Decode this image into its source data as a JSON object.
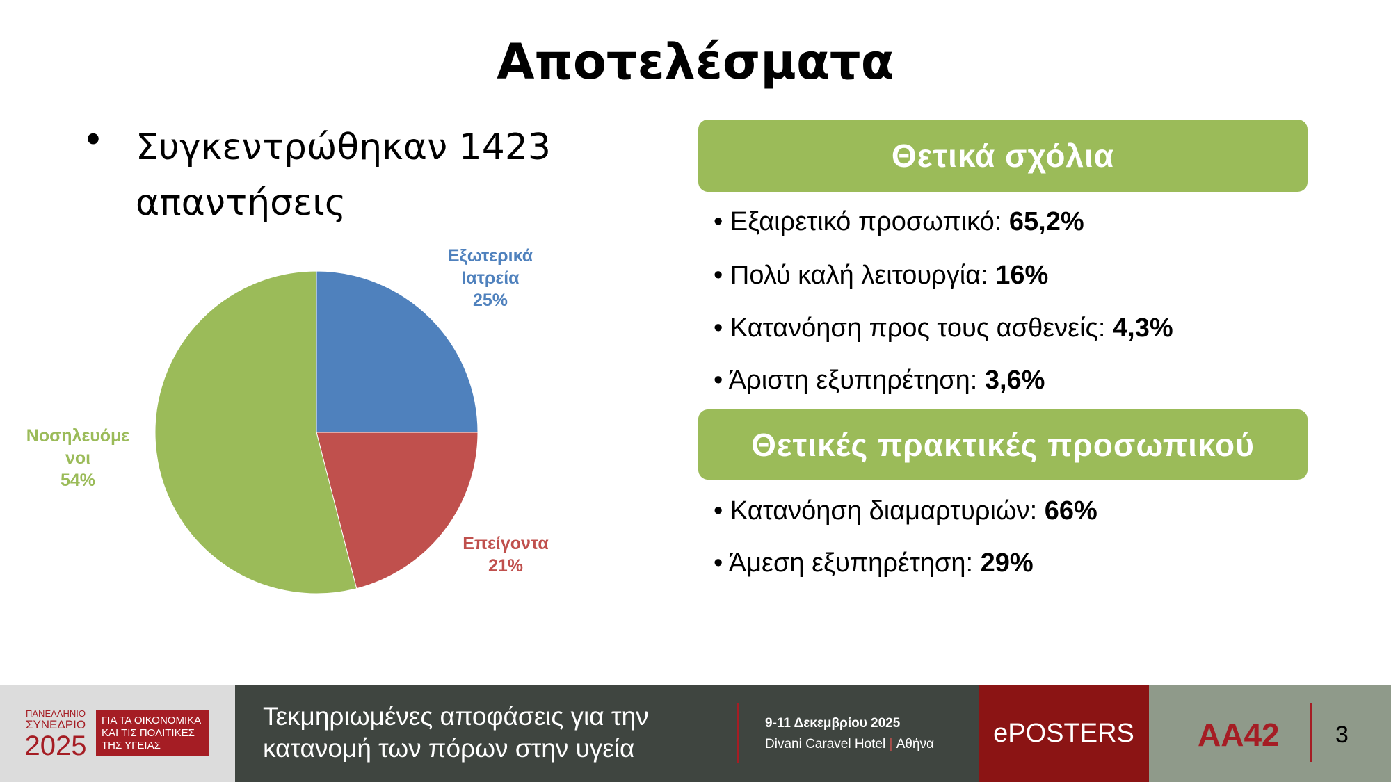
{
  "title": "Αποτελέσματα",
  "bullet": "Συγκεντρώθηκαν 1423 απαντήσεις",
  "chart_data": {
    "type": "pie",
    "categories": [
      "Εξωτερικά Ιατρεία",
      "Επείγοντα",
      "Νοσηλευόμενοι"
    ],
    "values": [
      25,
      21,
      54
    ],
    "value_labels": [
      "25%",
      "21%",
      "54%"
    ],
    "colors": [
      "#4f81bd",
      "#c0504d",
      "#9bbb59"
    ]
  },
  "panels": [
    {
      "heading": "Θετικά σχόλια",
      "items": [
        {
          "label": "Εξαιρετικό προσωπικό:",
          "value": "65,2%"
        },
        {
          "label": "Πολύ καλή λειτουργία:",
          "value": "16%"
        },
        {
          "label": "Κατανόηση προς τους ασθενείς:",
          "value": "4,3%"
        },
        {
          "label": "Άριστη εξυπηρέτηση:",
          "value": "3,6%"
        }
      ]
    },
    {
      "heading": "Θετικές πρακτικές προσωπικού",
      "items": [
        {
          "label": "Κατανόηση διαμαρτυριών:",
          "value": "66%"
        },
        {
          "label": "Άμεση εξυπηρέτηση:",
          "value": "29%"
        }
      ]
    }
  ],
  "footer": {
    "logo_lines": [
      "ΠΑΝΕΛΛΗΝΙΟ",
      "ΣΥΝΕΔΡΙΟ",
      "2025"
    ],
    "logo_box_lines": [
      "ΓΙΑ ΤΑ ΟΙΚΟΝΟΜΙΚΑ",
      "ΚΑΙ ΤΙΣ ΠΟΛΙΤΙΚΕΣ",
      "ΤΗΣ ΥΓΕΙΑΣ"
    ],
    "theme": "Τεκμηριωμένες αποφάσεις για την κατανομή των πόρων στην υγεία",
    "dates": "9-11 Δεκεμβρίου 2025",
    "venue": "Divani Caravel Hotel",
    "separator": "|",
    "city": "Αθήνα",
    "eposters": "ePOSTERS",
    "code": "AA42",
    "page": "3"
  }
}
